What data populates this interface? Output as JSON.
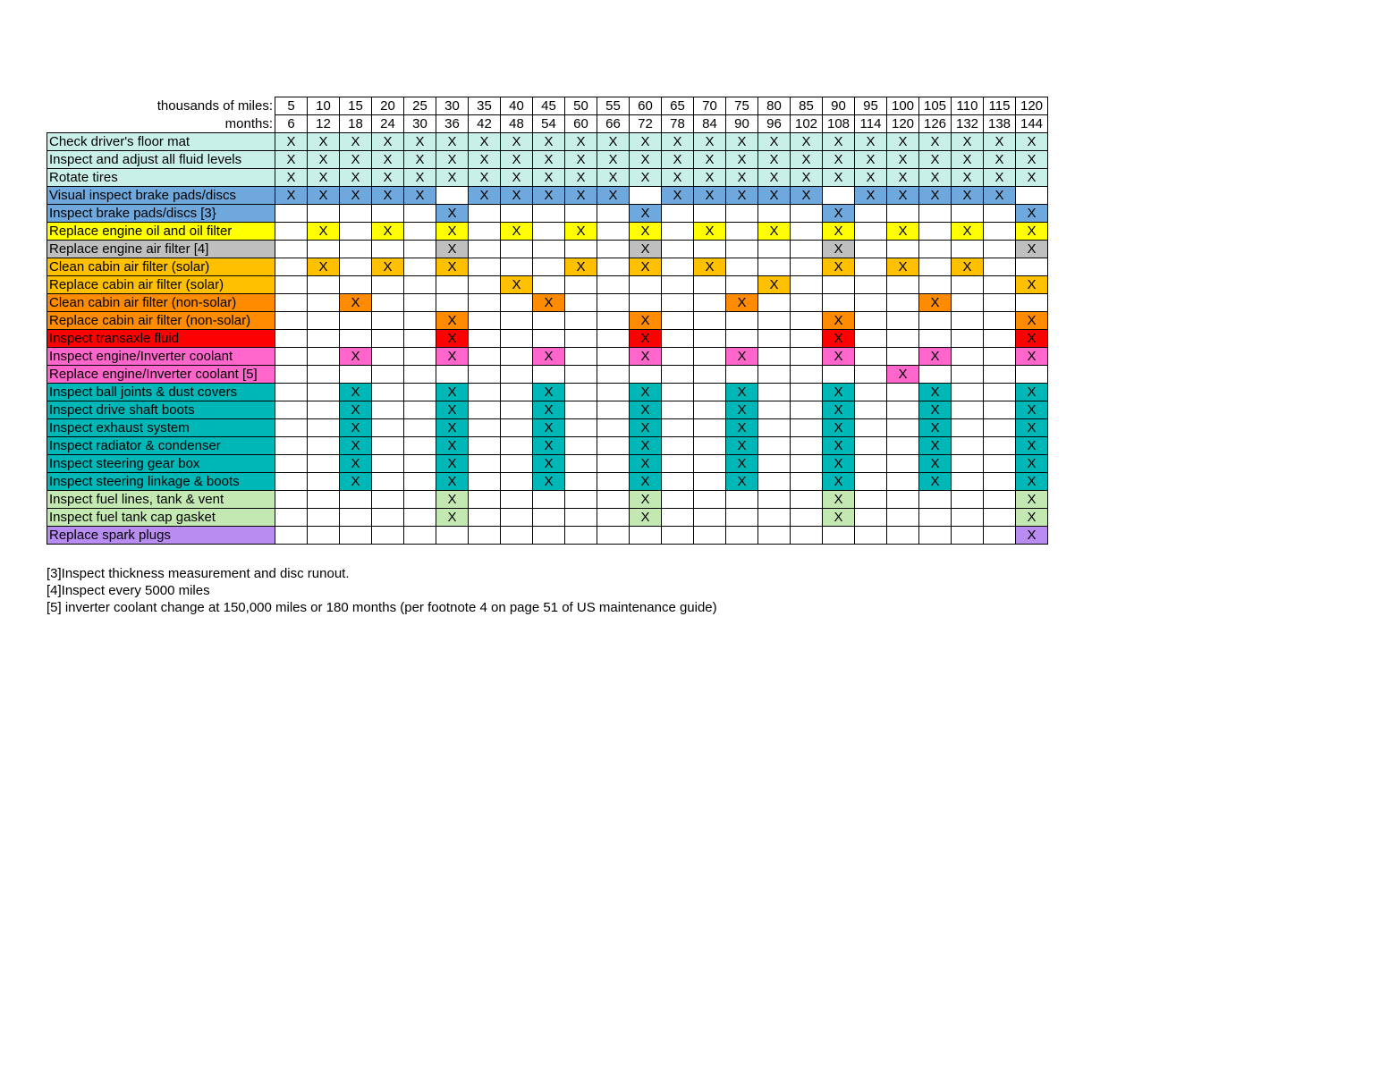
{
  "type": "table",
  "header": {
    "label1": "thousands of miles:",
    "label2": "months:",
    "miles": [
      "5",
      "10",
      "15",
      "20",
      "25",
      "30",
      "35",
      "40",
      "45",
      "50",
      "55",
      "60",
      "65",
      "70",
      "75",
      "80",
      "85",
      "90",
      "95",
      "100",
      "105",
      "110",
      "115",
      "120"
    ],
    "months": [
      "6",
      "12",
      "18",
      "24",
      "30",
      "36",
      "42",
      "48",
      "54",
      "60",
      "66",
      "72",
      "78",
      "84",
      "90",
      "96",
      "102",
      "108",
      "114",
      "120",
      "126",
      "132",
      "138",
      "144"
    ]
  },
  "mark": "X",
  "columns": 24,
  "colors": {
    "text": "#000000",
    "border": "#000000",
    "header_bg": "#ffffff"
  },
  "rows": [
    {
      "task": "Check driver's floor mat",
      "label_bg": "#c9f0e8",
      "x_bg": "#c9f0e8",
      "marks": [
        1,
        1,
        1,
        1,
        1,
        1,
        1,
        1,
        1,
        1,
        1,
        1,
        1,
        1,
        1,
        1,
        1,
        1,
        1,
        1,
        1,
        1,
        1,
        1
      ]
    },
    {
      "task": "Inspect and adjust all fluid levels",
      "label_bg": "#c9f0e8",
      "x_bg": "#c9f0e8",
      "marks": [
        1,
        1,
        1,
        1,
        1,
        1,
        1,
        1,
        1,
        1,
        1,
        1,
        1,
        1,
        1,
        1,
        1,
        1,
        1,
        1,
        1,
        1,
        1,
        1
      ]
    },
    {
      "task": "Rotate tires",
      "label_bg": "#c9f0e8",
      "x_bg": "#c9f0e8",
      "marks": [
        1,
        1,
        1,
        1,
        1,
        1,
        1,
        1,
        1,
        1,
        1,
        1,
        1,
        1,
        1,
        1,
        1,
        1,
        1,
        1,
        1,
        1,
        1,
        1
      ]
    },
    {
      "task": "Visual inspect brake pads/discs",
      "label_bg": "#6fa8dc",
      "x_bg": "#6fa8dc",
      "marks": [
        1,
        1,
        1,
        1,
        1,
        0,
        1,
        1,
        1,
        1,
        1,
        0,
        1,
        1,
        1,
        1,
        1,
        0,
        1,
        1,
        1,
        1,
        1,
        0
      ]
    },
    {
      "task": "Inspect brake pads/discs [3}",
      "label_bg": "#6fa8dc",
      "x_bg": "#6fa8dc",
      "marks": [
        0,
        0,
        0,
        0,
        0,
        1,
        0,
        0,
        0,
        0,
        0,
        1,
        0,
        0,
        0,
        0,
        0,
        1,
        0,
        0,
        0,
        0,
        0,
        1
      ]
    },
    {
      "task": "Replace engine oil and oil filter",
      "label_bg": "#ffff00",
      "x_bg": "#ffff00",
      "marks": [
        0,
        1,
        0,
        1,
        0,
        1,
        0,
        1,
        0,
        1,
        0,
        1,
        0,
        1,
        0,
        1,
        0,
        1,
        0,
        1,
        0,
        1,
        0,
        1
      ]
    },
    {
      "task": "Replace engine air filter [4]",
      "label_bg": "#bfbfbf",
      "x_bg": "#bfbfbf",
      "marks": [
        0,
        0,
        0,
        0,
        0,
        1,
        0,
        0,
        0,
        0,
        0,
        1,
        0,
        0,
        0,
        0,
        0,
        1,
        0,
        0,
        0,
        0,
        0,
        1
      ]
    },
    {
      "task": "Clean cabin air filter (solar)",
      "label_bg": "#ffc000",
      "x_bg": "#ffc000",
      "marks": [
        0,
        1,
        0,
        1,
        0,
        1,
        0,
        0,
        0,
        1,
        0,
        1,
        0,
        1,
        0,
        0,
        0,
        1,
        0,
        1,
        0,
        1,
        0,
        0
      ]
    },
    {
      "task": "Replace cabin air filter (solar)",
      "label_bg": "#ffc000",
      "x_bg": "#ffc000",
      "marks": [
        0,
        0,
        0,
        0,
        0,
        0,
        0,
        1,
        0,
        0,
        0,
        0,
        0,
        0,
        0,
        1,
        0,
        0,
        0,
        0,
        0,
        0,
        0,
        1
      ]
    },
    {
      "task": "Clean cabin air filter (non-solar)",
      "label_bg": "#ff8c00",
      "x_bg": "#ff8c00",
      "marks": [
        0,
        0,
        1,
        0,
        0,
        0,
        0,
        0,
        1,
        0,
        0,
        0,
        0,
        0,
        1,
        0,
        0,
        0,
        0,
        0,
        1,
        0,
        0,
        0
      ]
    },
    {
      "task": "Replace cabin air filter (non-solar)",
      "label_bg": "#ff8c00",
      "x_bg": "#ff8c00",
      "marks": [
        0,
        0,
        0,
        0,
        0,
        1,
        0,
        0,
        0,
        0,
        0,
        1,
        0,
        0,
        0,
        0,
        0,
        1,
        0,
        0,
        0,
        0,
        0,
        1
      ]
    },
    {
      "task": "Inspect transaxle fluid",
      "label_bg": "#ff0000",
      "x_bg": "#ff0000",
      "marks": [
        0,
        0,
        0,
        0,
        0,
        1,
        0,
        0,
        0,
        0,
        0,
        1,
        0,
        0,
        0,
        0,
        0,
        1,
        0,
        0,
        0,
        0,
        0,
        1
      ]
    },
    {
      "task": "Inspect engine/Inverter coolant",
      "label_bg": "#ff66cc",
      "x_bg": "#ff66cc",
      "marks": [
        0,
        0,
        1,
        0,
        0,
        1,
        0,
        0,
        1,
        0,
        0,
        1,
        0,
        0,
        1,
        0,
        0,
        1,
        0,
        0,
        1,
        0,
        0,
        1
      ]
    },
    {
      "task": "Replace engine/Inverter coolant [5]",
      "label_bg": "#ff66cc",
      "x_bg": "#ff66cc",
      "marks": [
        0,
        0,
        0,
        0,
        0,
        0,
        0,
        0,
        0,
        0,
        0,
        0,
        0,
        0,
        0,
        0,
        0,
        0,
        0,
        1,
        0,
        0,
        0,
        0
      ]
    },
    {
      "task": "Inspect ball joints & dust covers",
      "label_bg": "#00b7b7",
      "x_bg": "#00b7b7",
      "marks": [
        0,
        0,
        1,
        0,
        0,
        1,
        0,
        0,
        1,
        0,
        0,
        1,
        0,
        0,
        1,
        0,
        0,
        1,
        0,
        0,
        1,
        0,
        0,
        1
      ]
    },
    {
      "task": "Inspect drive shaft boots",
      "label_bg": "#00b7b7",
      "x_bg": "#00b7b7",
      "marks": [
        0,
        0,
        1,
        0,
        0,
        1,
        0,
        0,
        1,
        0,
        0,
        1,
        0,
        0,
        1,
        0,
        0,
        1,
        0,
        0,
        1,
        0,
        0,
        1
      ]
    },
    {
      "task": "Inspect exhaust system",
      "label_bg": "#00b7b7",
      "x_bg": "#00b7b7",
      "marks": [
        0,
        0,
        1,
        0,
        0,
        1,
        0,
        0,
        1,
        0,
        0,
        1,
        0,
        0,
        1,
        0,
        0,
        1,
        0,
        0,
        1,
        0,
        0,
        1
      ]
    },
    {
      "task": "Inspect radiator & condenser",
      "label_bg": "#00b7b7",
      "x_bg": "#00b7b7",
      "marks": [
        0,
        0,
        1,
        0,
        0,
        1,
        0,
        0,
        1,
        0,
        0,
        1,
        0,
        0,
        1,
        0,
        0,
        1,
        0,
        0,
        1,
        0,
        0,
        1
      ]
    },
    {
      "task": "Inspect steering gear box",
      "label_bg": "#00b7b7",
      "x_bg": "#00b7b7",
      "marks": [
        0,
        0,
        1,
        0,
        0,
        1,
        0,
        0,
        1,
        0,
        0,
        1,
        0,
        0,
        1,
        0,
        0,
        1,
        0,
        0,
        1,
        0,
        0,
        1
      ]
    },
    {
      "task": "Inspect steering linkage & boots",
      "label_bg": "#00b7b7",
      "x_bg": "#00b7b7",
      "marks": [
        0,
        0,
        1,
        0,
        0,
        1,
        0,
        0,
        1,
        0,
        0,
        1,
        0,
        0,
        1,
        0,
        0,
        1,
        0,
        0,
        1,
        0,
        0,
        1
      ]
    },
    {
      "task": "Inspect fuel lines, tank & vent",
      "label_bg": "#c4e8b2",
      "x_bg": "#c4e8b2",
      "marks": [
        0,
        0,
        0,
        0,
        0,
        1,
        0,
        0,
        0,
        0,
        0,
        1,
        0,
        0,
        0,
        0,
        0,
        1,
        0,
        0,
        0,
        0,
        0,
        1
      ]
    },
    {
      "task": "Inspect fuel tank cap gasket",
      "label_bg": "#c4e8b2",
      "x_bg": "#c4e8b2",
      "marks": [
        0,
        0,
        0,
        0,
        0,
        1,
        0,
        0,
        0,
        0,
        0,
        1,
        0,
        0,
        0,
        0,
        0,
        1,
        0,
        0,
        0,
        0,
        0,
        1
      ]
    },
    {
      "task": "Replace spark plugs",
      "label_bg": "#b98cf2",
      "x_bg": "#b98cf2",
      "marks": [
        0,
        0,
        0,
        0,
        0,
        0,
        0,
        0,
        0,
        0,
        0,
        0,
        0,
        0,
        0,
        0,
        0,
        0,
        0,
        0,
        0,
        0,
        0,
        1
      ]
    }
  ],
  "footnotes": [
    "[3]Inspect thickness measurement and disc runout.",
    "[4]Inspect every 5000 miles",
    "[5] inverter coolant change at 150,000 miles or 180 months (per footnote 4 on page 51 of US maintenance guide)"
  ]
}
